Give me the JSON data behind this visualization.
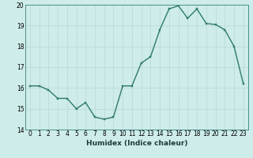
{
  "xlabel": "Humidex (Indice chaleur)",
  "ylabel": "",
  "x": [
    0,
    1,
    2,
    3,
    4,
    5,
    6,
    7,
    8,
    9,
    10,
    11,
    12,
    13,
    14,
    15,
    16,
    17,
    18,
    19,
    20,
    21,
    22,
    23
  ],
  "y": [
    16.1,
    16.1,
    15.9,
    15.5,
    15.5,
    15.0,
    15.3,
    14.6,
    14.5,
    14.6,
    16.1,
    16.1,
    17.2,
    17.5,
    18.8,
    19.8,
    19.95,
    19.35,
    19.8,
    19.1,
    19.05,
    18.8,
    18.0,
    16.2
  ],
  "line_color": "#2d7a6c",
  "marker_color": "#2d7a6c",
  "bg_color": "#ceecea",
  "grid_color": "#b8d8d5",
  "ylim": [
    14,
    20
  ],
  "xlim": [
    -0.5,
    23.5
  ],
  "yticks": [
    14,
    15,
    16,
    17,
    18,
    19,
    20
  ],
  "xticks": [
    0,
    1,
    2,
    3,
    4,
    5,
    6,
    7,
    8,
    9,
    10,
    11,
    12,
    13,
    14,
    15,
    16,
    17,
    18,
    19,
    20,
    21,
    22,
    23
  ],
  "xtick_labels": [
    "0",
    "1",
    "2",
    "3",
    "4",
    "5",
    "6",
    "7",
    "8",
    "9",
    "10",
    "11",
    "12",
    "13",
    "14",
    "15",
    "16",
    "17",
    "18",
    "19",
    "20",
    "21",
    "22",
    "23"
  ],
  "fontsize_ticks": 5.5,
  "fontsize_label": 6.5,
  "linewidth": 1.0,
  "markersize": 2.0
}
